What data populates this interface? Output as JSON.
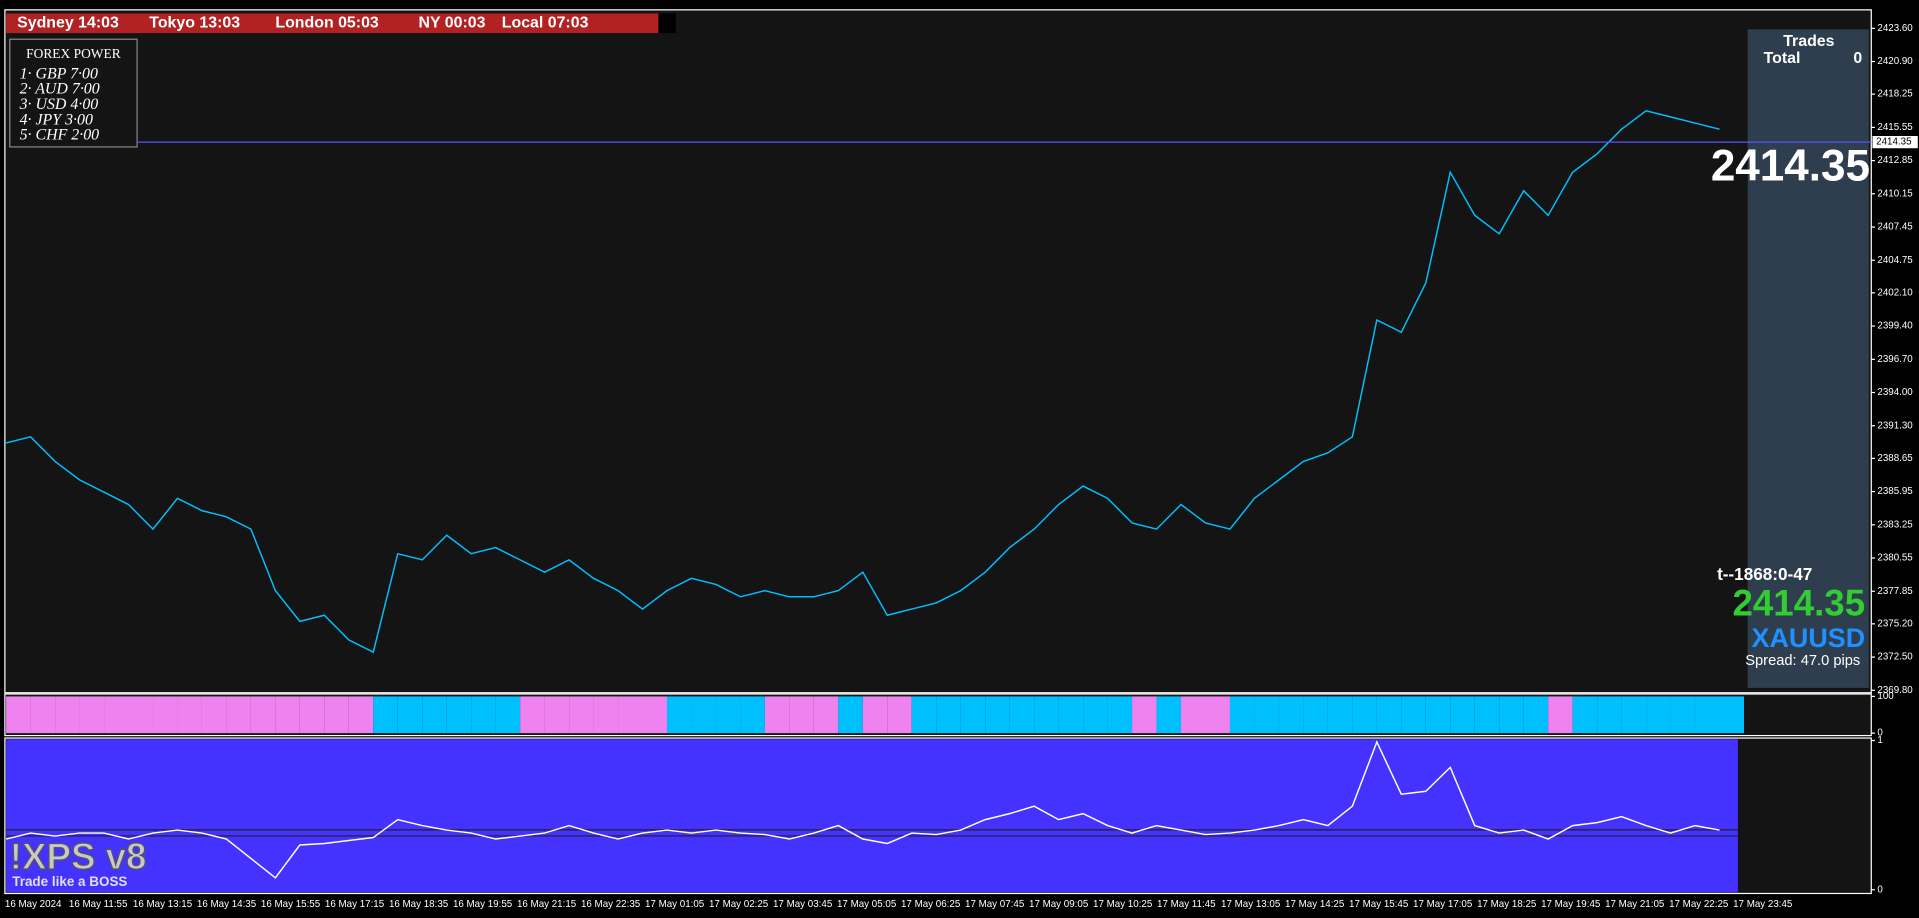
{
  "header": {
    "sessions": [
      "Sydney 14:03",
      "Tokyo 13:03",
      "London 05:03",
      "NY  00:03",
      "Local  07:03"
    ]
  },
  "forex_power": {
    "title": "FOREX POWER",
    "items": [
      "1· GBP 7·00",
      "2· AUD 7·00",
      "3· USD 4·00",
      "4· JPY 3·00",
      "5· CHF 2·00"
    ]
  },
  "trades_panel": {
    "title": "Trades",
    "total_label": "Total",
    "total": 0
  },
  "bid": 2414.35,
  "timer": "t--1868:0-47",
  "symbol": "XAUUSD",
  "spread": "Spread: 47.0 pips",
  "logo": {
    "name": "!XPS v8",
    "tagline": "Trade like a BOSS"
  },
  "time_axis": {
    "labels": [
      "16 May 2024",
      "16 May 11:55",
      "16 May 13:15",
      "16 May 14:35",
      "16 May 15:55",
      "16 May 17:15",
      "16 May 18:35",
      "16 May 19:55",
      "16 May 21:15",
      "16 May 22:35",
      "17 May 01:05",
      "17 May 02:25",
      "17 May 03:45",
      "17 May 05:05",
      "17 May 06:25",
      "17 May 07:45",
      "17 May 09:05",
      "17 May 10:25",
      "17 May 11:45",
      "17 May 13:05",
      "17 May 14:25",
      "17 May 15:45",
      "17 May 17:05",
      "17 May 18:25",
      "17 May 19:45",
      "17 May 21:05",
      "17 May 22:25",
      "17 May 23:45"
    ]
  },
  "chart_data": [
    {
      "type": "line",
      "color": "#00bfff",
      "ylim": [
        2369.6,
        2425.1
      ],
      "yticks": [
        {
          "value": 2423.6,
          "label": "2423.60"
        },
        {
          "value": 2420.9,
          "label": "2420.90"
        },
        2418.25,
        2415.55,
        2412.85,
        2410.15,
        2407.45,
        2404.75,
        {
          "value": 2402.1,
          "label": "2402.10"
        },
        {
          "value": 2399.4,
          "label": "2399.40"
        },
        {
          "value": 2396.7,
          "label": "2396.70"
        },
        {
          "value": 2394,
          "label": "2394.00"
        },
        {
          "value": 2391.3,
          "label": "2391.30"
        },
        2388.65,
        2385.95,
        2383.25,
        2380.55,
        2377.85,
        {
          "value": 2375.2,
          "label": "2375.20"
        },
        {
          "value": 2372.5,
          "label": "2372.50"
        },
        {
          "value": 2369.8,
          "label": "2369.80"
        }
      ],
      "values": [
        2389.9,
        2390.4,
        2388.4,
        2386.9,
        2385.9,
        2384.9,
        2382.9,
        2385.4,
        2384.4,
        2383.9,
        2382.9,
        2377.9,
        2375.4,
        2375.9,
        2373.9,
        2372.9,
        2380.9,
        2380.4,
        2382.4,
        2380.9,
        2381.4,
        2380.4,
        2379.4,
        2380.4,
        2378.9,
        2377.9,
        2376.4,
        2377.9,
        2378.9,
        2378.4,
        2377.4,
        2377.9,
        2377.4,
        2377.4,
        2377.9,
        2379.4,
        2375.9,
        2376.4,
        2376.9,
        2377.9,
        2379.4,
        2381.4,
        2382.9,
        2384.9,
        2386.4,
        2385.4,
        2383.4,
        2382.9,
        2384.9,
        2383.4,
        2382.9,
        2385.4,
        2386.9,
        2388.4,
        2389.1,
        2390.4,
        2399.9,
        2398.9,
        2402.9,
        2411.9,
        2408.4,
        2406.9,
        2410.4,
        2408.4,
        2411.9,
        2413.4,
        2415.4,
        2416.9,
        2416.4,
        2415.9,
        2415.4
      ]
    },
    {
      "type": "bar",
      "ylim": [
        0,
        100
      ],
      "yticks": [
        100,
        0
      ],
      "values": [
        100,
        100,
        100,
        100,
        100,
        100,
        100,
        100,
        100,
        100,
        100,
        100,
        100,
        100,
        100,
        100,
        100,
        100,
        100,
        100,
        100,
        100,
        100,
        100,
        100,
        100,
        100,
        100,
        100,
        100,
        100,
        100,
        100,
        100,
        100,
        100,
        100,
        100,
        100,
        100,
        100,
        100,
        100,
        100,
        100,
        100,
        100,
        100,
        100,
        100,
        100,
        100,
        100,
        100,
        100,
        100,
        100,
        100,
        100,
        100,
        100,
        100,
        100,
        100,
        100,
        100,
        100,
        100,
        100,
        100,
        100
      ],
      "colors": [
        "#ee82ee",
        "#ee82ee",
        "#ee82ee",
        "#ee82ee",
        "#ee82ee",
        "#ee82ee",
        "#ee82ee",
        "#ee82ee",
        "#ee82ee",
        "#ee82ee",
        "#ee82ee",
        "#ee82ee",
        "#ee82ee",
        "#ee82ee",
        "#ee82ee",
        "#00bfff",
        "#00bfff",
        "#00bfff",
        "#00bfff",
        "#00bfff",
        "#00bfff",
        "#ee82ee",
        "#ee82ee",
        "#ee82ee",
        "#ee82ee",
        "#ee82ee",
        "#ee82ee",
        "#00bfff",
        "#00bfff",
        "#00bfff",
        "#00bfff",
        "#ee82ee",
        "#ee82ee",
        "#ee82ee",
        "#00bfff",
        "#ee82ee",
        "#ee82ee",
        "#00bfff",
        "#00bfff",
        "#00bfff",
        "#00bfff",
        "#00bfff",
        "#00bfff",
        "#00bfff",
        "#00bfff",
        "#00bfff",
        "#ee82ee",
        "#00bfff",
        "#ee82ee",
        "#ee82ee",
        "#00bfff",
        "#00bfff",
        "#00bfff",
        "#00bfff",
        "#00bfff",
        "#00bfff",
        "#00bfff",
        "#00bfff",
        "#00bfff",
        "#00bfff",
        "#00bfff",
        "#00bfff",
        "#00bfff",
        "#ee82ee",
        "#00bfff",
        "#00bfff",
        "#00bfff",
        "#00bfff",
        "#00bfff",
        "#00bfff",
        "#00bfff"
      ]
    },
    {
      "type": "line",
      "color": "#ffffff",
      "ylim": [
        0,
        1
      ],
      "yticks": [
        1,
        0
      ],
      "values": [
        0.34,
        0.38,
        0.36,
        0.38,
        0.38,
        0.34,
        0.38,
        0.4,
        0.38,
        0.34,
        0.21,
        0.08,
        0.3,
        0.31,
        0.33,
        0.35,
        0.47,
        0.43,
        0.4,
        0.38,
        0.34,
        0.36,
        0.38,
        0.43,
        0.38,
        0.34,
        0.38,
        0.4,
        0.38,
        0.4,
        0.38,
        0.37,
        0.34,
        0.38,
        0.43,
        0.34,
        0.31,
        0.38,
        0.37,
        0.4,
        0.47,
        0.51,
        0.56,
        0.47,
        0.51,
        0.43,
        0.38,
        0.43,
        0.4,
        0.37,
        0.38,
        0.4,
        0.43,
        0.47,
        0.43,
        0.56,
        0.99,
        0.64,
        0.66,
        0.82,
        0.43,
        0.38,
        0.4,
        0.34,
        0.43,
        0.45,
        0.49,
        0.43,
        0.38,
        0.43,
        0.4
      ]
    }
  ]
}
